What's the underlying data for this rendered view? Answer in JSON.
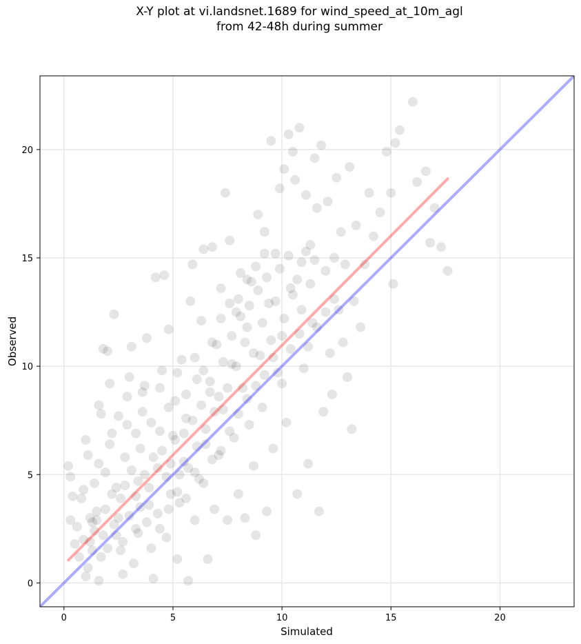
{
  "chart_data": {
    "type": "scatter",
    "title": "X-Y plot at vi.landsnet.1689 for wind_speed_at_10m_agl",
    "subtitle": "from 42-48h during summer",
    "xlabel": "Simulated",
    "ylabel": "Observed",
    "xlim": [
      -1.1,
      23.4
    ],
    "ylim": [
      -1.1,
      23.4
    ],
    "xticks": [
      0,
      5,
      10,
      15,
      20
    ],
    "yticks": [
      0,
      5,
      10,
      15,
      20
    ],
    "grid": true,
    "colors": {
      "points": "#000000",
      "regression_line": "#ff0000",
      "identity_line": "#0000ff",
      "grid": "#e8e8e8"
    },
    "regression_line": {
      "x": [
        0.2,
        17.6
      ],
      "y": [
        1.05,
        18.65
      ]
    },
    "identity_line": {
      "x": [
        -1.1,
        23.4
      ],
      "y": [
        -1.1,
        23.4
      ]
    },
    "points": [
      [
        0.2,
        5.4
      ],
      [
        0.3,
        4.9
      ],
      [
        0.4,
        4.0
      ],
      [
        0.3,
        2.9
      ],
      [
        0.5,
        1.8
      ],
      [
        0.6,
        2.6
      ],
      [
        0.8,
        3.9
      ],
      [
        0.9,
        4.3
      ],
      [
        1.0,
        0.3
      ],
      [
        1.1,
        0.7
      ],
      [
        1.2,
        1.9
      ],
      [
        1.3,
        2.8
      ],
      [
        1.1,
        5.9
      ],
      [
        1.0,
        6.6
      ],
      [
        1.4,
        4.6
      ],
      [
        1.5,
        3.3
      ],
      [
        1.6,
        0.1
      ],
      [
        1.7,
        1.2
      ],
      [
        1.8,
        2.2
      ],
      [
        1.9,
        5.1
      ],
      [
        1.7,
        7.8
      ],
      [
        1.6,
        8.2
      ],
      [
        1.8,
        10.8
      ],
      [
        2.0,
        10.7
      ],
      [
        2.1,
        9.2
      ],
      [
        2.2,
        6.9
      ],
      [
        2.3,
        12.4
      ],
      [
        2.4,
        4.4
      ],
      [
        2.5,
        3.0
      ],
      [
        2.6,
        1.5
      ],
      [
        2.7,
        0.4
      ],
      [
        2.8,
        5.8
      ],
      [
        2.9,
        7.3
      ],
      [
        3.0,
        9.5
      ],
      [
        3.1,
        10.9
      ],
      [
        3.2,
        0.9
      ],
      [
        3.3,
        2.5
      ],
      [
        3.4,
        4.7
      ],
      [
        3.5,
        6.2
      ],
      [
        3.6,
        7.9
      ],
      [
        3.7,
        9.1
      ],
      [
        3.8,
        11.3
      ],
      [
        3.9,
        3.6
      ],
      [
        4.0,
        1.6
      ],
      [
        4.1,
        0.2
      ],
      [
        4.2,
        14.1
      ],
      [
        4.3,
        5.3
      ],
      [
        4.4,
        7.0
      ],
      [
        4.6,
        14.2
      ],
      [
        4.5,
        9.8
      ],
      [
        4.7,
        2.1
      ],
      [
        4.8,
        11.7
      ],
      [
        4.9,
        4.1
      ],
      [
        5.0,
        6.8
      ],
      [
        5.1,
        8.4
      ],
      [
        5.2,
        1.1
      ],
      [
        5.3,
        3.7
      ],
      [
        5.4,
        10.3
      ],
      [
        5.5,
        5.6
      ],
      [
        5.6,
        7.6
      ],
      [
        5.7,
        0.1
      ],
      [
        5.8,
        13.0
      ],
      [
        5.9,
        14.7
      ],
      [
        6.0,
        2.9
      ],
      [
        6.1,
        9.4
      ],
      [
        6.2,
        4.8
      ],
      [
        6.3,
        12.1
      ],
      [
        6.4,
        15.4
      ],
      [
        6.5,
        6.4
      ],
      [
        6.6,
        1.1
      ],
      [
        6.7,
        8.8
      ],
      [
        6.8,
        15.5
      ],
      [
        6.9,
        3.4
      ],
      [
        7.0,
        11.0
      ],
      [
        7.1,
        5.9
      ],
      [
        7.2,
        13.6
      ],
      [
        7.3,
        8.0
      ],
      [
        7.4,
        18.0
      ],
      [
        7.5,
        2.9
      ],
      [
        7.6,
        15.8
      ],
      [
        7.7,
        10.1
      ],
      [
        7.8,
        6.7
      ],
      [
        7.9,
        12.5
      ],
      [
        8.0,
        4.1
      ],
      [
        8.1,
        14.3
      ],
      [
        8.2,
        9.0
      ],
      [
        8.3,
        3.0
      ],
      [
        8.4,
        11.8
      ],
      [
        8.5,
        7.3
      ],
      [
        8.6,
        13.9
      ],
      [
        8.7,
        5.4
      ],
      [
        8.8,
        2.2
      ],
      [
        8.9,
        17.0
      ],
      [
        9.0,
        10.5
      ],
      [
        9.1,
        8.1
      ],
      [
        9.2,
        16.2
      ],
      [
        9.3,
        3.3
      ],
      [
        9.4,
        12.9
      ],
      [
        9.5,
        20.4
      ],
      [
        9.6,
        6.2
      ],
      [
        9.7,
        15.2
      ],
      [
        9.8,
        9.7
      ],
      [
        9.9,
        18.2
      ],
      [
        10.0,
        11.4
      ],
      [
        10.1,
        19.1
      ],
      [
        10.2,
        7.4
      ],
      [
        10.3,
        20.7
      ],
      [
        10.4,
        13.6
      ],
      [
        10.5,
        19.9
      ],
      [
        10.6,
        18.6
      ],
      [
        10.7,
        4.1
      ],
      [
        10.8,
        21.0
      ],
      [
        10.9,
        14.8
      ],
      [
        11.0,
        9.9
      ],
      [
        11.1,
        17.9
      ],
      [
        11.2,
        5.5
      ],
      [
        11.3,
        15.6
      ],
      [
        11.4,
        12.0
      ],
      [
        11.5,
        19.6
      ],
      [
        11.6,
        17.3
      ],
      [
        11.7,
        3.3
      ],
      [
        11.8,
        20.2
      ],
      [
        11.9,
        7.9
      ],
      [
        12.0,
        14.4
      ],
      [
        12.1,
        17.6
      ],
      [
        12.2,
        10.6
      ],
      [
        12.3,
        8.7
      ],
      [
        12.4,
        15.0
      ],
      [
        12.5,
        18.7
      ],
      [
        12.6,
        12.6
      ],
      [
        12.7,
        16.2
      ],
      [
        12.8,
        11.1
      ],
      [
        12.9,
        14.7
      ],
      [
        13.0,
        9.5
      ],
      [
        13.1,
        19.2
      ],
      [
        13.2,
        7.1
      ],
      [
        13.3,
        13.0
      ],
      [
        13.4,
        16.5
      ],
      [
        13.6,
        11.8
      ],
      [
        13.8,
        14.7
      ],
      [
        14.0,
        18.0
      ],
      [
        14.2,
        16.0
      ],
      [
        14.5,
        17.1
      ],
      [
        14.8,
        19.9
      ],
      [
        15.0,
        18.0
      ],
      [
        15.2,
        20.3
      ],
      [
        15.4,
        20.9
      ],
      [
        15.1,
        13.8
      ],
      [
        16.2,
        18.5
      ],
      [
        16.8,
        15.7
      ],
      [
        16.6,
        19.0
      ],
      [
        17.0,
        17.3
      ],
      [
        17.3,
        15.5
      ],
      [
        17.6,
        14.4
      ],
      [
        16.0,
        22.2
      ],
      [
        1.2,
        3.0
      ],
      [
        1.4,
        2.4
      ],
      [
        1.9,
        3.4
      ],
      [
        2.2,
        4.1
      ],
      [
        2.4,
        2.2
      ],
      [
        2.6,
        3.9
      ],
      [
        2.8,
        4.5
      ],
      [
        3.0,
        3.1
      ],
      [
        3.1,
        5.2
      ],
      [
        3.3,
        4.0
      ],
      [
        3.5,
        3.5
      ],
      [
        3.7,
        5.0
      ],
      [
        3.9,
        4.4
      ],
      [
        4.1,
        5.8
      ],
      [
        4.3,
        3.2
      ],
      [
        4.5,
        6.1
      ],
      [
        4.7,
        4.9
      ],
      [
        4.9,
        5.5
      ],
      [
        5.1,
        6.6
      ],
      [
        5.3,
        5.0
      ],
      [
        5.5,
        6.9
      ],
      [
        5.7,
        5.3
      ],
      [
        5.9,
        7.5
      ],
      [
        6.1,
        6.3
      ],
      [
        6.3,
        8.2
      ],
      [
        6.5,
        7.1
      ],
      [
        6.7,
        9.3
      ],
      [
        6.9,
        7.9
      ],
      [
        7.1,
        8.6
      ],
      [
        7.3,
        10.2
      ],
      [
        7.5,
        9.0
      ],
      [
        7.7,
        11.4
      ],
      [
        7.9,
        10.0
      ],
      [
        8.1,
        12.3
      ],
      [
        8.3,
        11.1
      ],
      [
        8.5,
        12.8
      ],
      [
        8.7,
        10.6
      ],
      [
        8.9,
        13.5
      ],
      [
        9.1,
        12.0
      ],
      [
        9.3,
        14.1
      ],
      [
        9.5,
        11.2
      ],
      [
        9.7,
        13.0
      ],
      [
        9.9,
        14.5
      ],
      [
        10.1,
        12.2
      ],
      [
        10.3,
        15.1
      ],
      [
        10.5,
        13.3
      ],
      [
        10.7,
        14.0
      ],
      [
        10.9,
        12.6
      ],
      [
        11.1,
        15.3
      ],
      [
        11.3,
        13.8
      ],
      [
        11.5,
        14.9
      ],
      [
        0.7,
        1.2
      ],
      [
        0.9,
        2.0
      ],
      [
        1.3,
        1.5
      ],
      [
        1.5,
        2.9
      ],
      [
        2.0,
        1.6
      ],
      [
        2.3,
        2.7
      ],
      [
        2.7,
        1.9
      ],
      [
        3.4,
        2.3
      ],
      [
        3.8,
        2.8
      ],
      [
        4.4,
        2.5
      ],
      [
        4.8,
        3.4
      ],
      [
        5.2,
        4.2
      ],
      [
        5.6,
        3.9
      ],
      [
        6.0,
        5.1
      ],
      [
        6.4,
        4.6
      ],
      [
        6.8,
        5.7
      ],
      [
        7.2,
        6.1
      ],
      [
        7.6,
        7.0
      ],
      [
        8.0,
        7.8
      ],
      [
        8.4,
        8.5
      ],
      [
        8.8,
        9.1
      ],
      [
        9.2,
        9.6
      ],
      [
        9.6,
        10.4
      ],
      [
        10.0,
        9.2
      ],
      [
        10.4,
        10.8
      ],
      [
        10.8,
        11.5
      ],
      [
        11.2,
        10.9
      ],
      [
        11.6,
        11.8
      ],
      [
        12.0,
        12.5
      ],
      [
        12.4,
        13.1
      ],
      [
        1.6,
        5.5
      ],
      [
        2.1,
        6.4
      ],
      [
        2.5,
        7.7
      ],
      [
        2.9,
        8.6
      ],
      [
        3.3,
        6.9
      ],
      [
        3.6,
        8.8
      ],
      [
        4.0,
        7.4
      ],
      [
        4.4,
        9.0
      ],
      [
        4.8,
        8.1
      ],
      [
        5.2,
        9.7
      ],
      [
        5.6,
        8.7
      ],
      [
        6.0,
        10.4
      ],
      [
        6.4,
        9.8
      ],
      [
        6.8,
        11.1
      ],
      [
        7.2,
        12.2
      ],
      [
        7.6,
        12.9
      ],
      [
        8.0,
        13.1
      ],
      [
        8.4,
        14.0
      ],
      [
        8.8,
        14.6
      ],
      [
        9.2,
        15.2
      ]
    ]
  }
}
